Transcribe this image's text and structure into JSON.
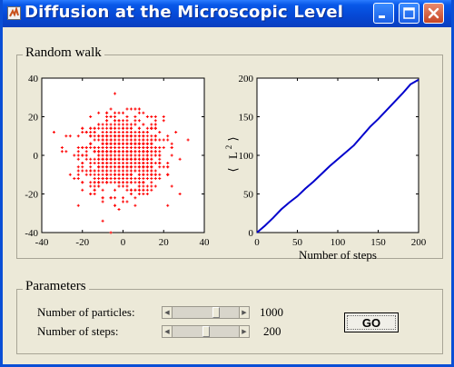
{
  "window": {
    "title": "Diffusion at the Microscopic Level",
    "colors": {
      "title_bar": "#0858e8",
      "background": "#ece9d8",
      "points": "#ff0000",
      "line": "#0000cc"
    }
  },
  "random_walk_panel": {
    "legend": "Random walk"
  },
  "parameters_panel": {
    "legend": "Parameters",
    "particles": {
      "label": "Number of particles:",
      "value": "1000"
    },
    "steps": {
      "label": "Number of steps:",
      "value": "200"
    },
    "go_label": "GO"
  },
  "chart_data": [
    {
      "type": "scatter",
      "title": "",
      "xlabel": "",
      "ylabel": "",
      "xlim": [
        -40,
        40
      ],
      "ylim": [
        -40,
        40
      ],
      "xticks": [
        -40,
        -20,
        0,
        20,
        40
      ],
      "yticks": [
        -40,
        -20,
        0,
        20,
        40
      ],
      "color": "#ff0000",
      "point_count": 1000,
      "spread_sd": 10,
      "grid": false
    },
    {
      "type": "line",
      "title": "",
      "xlabel": "Number of steps",
      "ylabel": "L",
      "ylabel_superscript": "2",
      "xlim": [
        0,
        200
      ],
      "ylim": [
        0,
        200
      ],
      "xticks": [
        0,
        50,
        100,
        150,
        200
      ],
      "yticks": [
        0,
        50,
        100,
        150,
        200
      ],
      "color": "#0000cc",
      "x": [
        0,
        10,
        20,
        30,
        40,
        50,
        60,
        70,
        80,
        90,
        100,
        110,
        120,
        130,
        140,
        150,
        160,
        170,
        180,
        190,
        200
      ],
      "y": [
        0,
        9,
        19,
        30,
        39,
        47,
        57,
        66,
        76,
        86,
        95,
        104,
        113,
        125,
        137,
        147,
        158,
        169,
        180,
        192,
        198
      ],
      "grid": false
    }
  ]
}
